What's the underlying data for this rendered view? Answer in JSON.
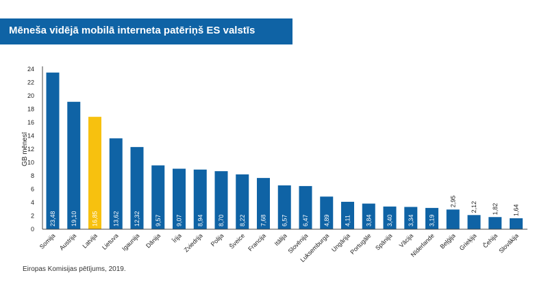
{
  "header": {
    "title": "Mēneša vidējā mobilā interneta patēriņš ES valstīs"
  },
  "footer": {
    "source": "Eiropas Komisijas pētījums, 2019."
  },
  "colors": {
    "bar": "#0f63a5",
    "highlight": "#f7c10f",
    "title_bg": "#0f63a5"
  },
  "chart_data": {
    "type": "bar",
    "title": "Mēneša vidējā mobilā interneta patēriņš ES valstīs",
    "xlabel": "",
    "ylabel": "GB mēnesī",
    "ylim": [
      0,
      24
    ],
    "yticks": [
      0,
      2,
      4,
      6,
      8,
      10,
      12,
      14,
      16,
      18,
      20,
      22,
      24
    ],
    "grid": false,
    "highlight_category": "Latvija",
    "categories": [
      "Somija",
      "Austrija",
      "Latvija",
      "Lietuva",
      "Igaunija",
      "Dānija",
      "Īrija",
      "Zviedrija",
      "Polija",
      "Šveice",
      "Francija",
      "Itālija",
      "Slovēnija",
      "Luksemburga",
      "Ungārija",
      "Portugāle",
      "Spānija",
      "Vācija",
      "Nīderlande",
      "Beļģija",
      "Grieķija",
      "Čehija",
      "Slovākija"
    ],
    "values": [
      23.48,
      19.1,
      16.85,
      13.62,
      12.32,
      9.57,
      9.07,
      8.94,
      8.7,
      8.22,
      7.68,
      6.57,
      6.47,
      4.89,
      4.11,
      3.84,
      3.4,
      3.34,
      3.19,
      2.95,
      2.12,
      1.82,
      1.64
    ],
    "value_labels": [
      "23,48",
      "19,10",
      "16,85",
      "13,62",
      "12,32",
      "9,57",
      "9,07",
      "8,94",
      "8,70",
      "8,22",
      "7,68",
      "6,57",
      "6,47",
      "4,89",
      "4,11",
      "3,84",
      "3,40",
      "3,34",
      "3,19",
      "2,95",
      "2,12",
      "1,82",
      "1,64"
    ]
  }
}
